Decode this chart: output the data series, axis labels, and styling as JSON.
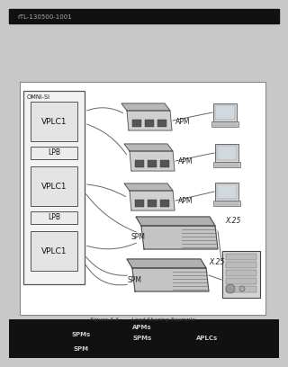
{
  "title_bar_text": "rTL-130500-1001",
  "title_bar_bg": "#111111",
  "title_bar_text_color": "#aaaaaa",
  "page_bg": "#c8c8c8",
  "diagram_bg": "#ffffff",
  "diagram_border": "#888888",
  "figure_caption": "Figure 3.3  —  Load Sharing Example",
  "omni_si_label": "OMNI-SI",
  "omni_box_color": "#eeeeee",
  "omni_box_border": "#555555",
  "vplc_labels": [
    "VPLC1",
    "VPLC1",
    "VPLC1"
  ],
  "vplc_box_color": "#e0e0e0",
  "vplc_box_border": "#555555",
  "lpb_labels": [
    "LPB",
    "LPB"
  ],
  "lpb_box_color": "#e8e8e8",
  "apm_labels": [
    "APM",
    "APM",
    "APM"
  ],
  "spm_labels": [
    "SPM",
    "SPM"
  ],
  "x25_labels": [
    "X.25",
    "X.25"
  ],
  "apm_device_color": "#cccccc",
  "apm_port_color": "#444444",
  "spm_device_color": "#bbbbbb",
  "computer_monitor_color": "#d8d8d8",
  "computer_screen_color": "#d0d8e0",
  "server_color": "#d4d4d4",
  "line_color": "#666666",
  "text_color": "#111111",
  "label_color": "#333333",
  "bottom_text_bg": "#111111",
  "caption_line1": "APMs",
  "caption_line2_left": "SPMs",
  "caption_line2_mid": "SPMs",
  "caption_line2_right": "APLCs",
  "caption_line3": "SPM"
}
